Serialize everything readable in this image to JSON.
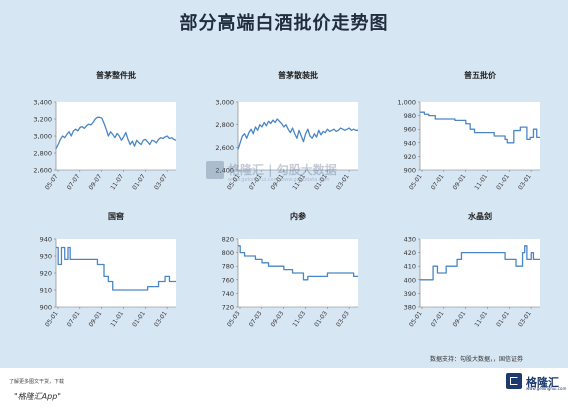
{
  "header": {
    "title": "部分高端白酒批价走势图"
  },
  "colors": {
    "background": "#d7e6f3",
    "line": "#4a86c5",
    "title": "#1f2d3d",
    "plot_bg": "#ffffff"
  },
  "chart_data": [
    {
      "type": "line",
      "title": "普茅整件批",
      "ylim": [
        2600,
        3400
      ],
      "yticks": [
        "2,600",
        "2,800",
        "3,000",
        "3,200",
        "3,400"
      ],
      "xticks": [
        "05-07",
        "07-07",
        "09-07",
        "11-07",
        "01-07",
        "03-07"
      ],
      "x_range": [
        0,
        11
      ],
      "series": [
        {
          "points": [
            [
              0,
              2850
            ],
            [
              0.2,
              2900
            ],
            [
              0.4,
              2960
            ],
            [
              0.6,
              3000
            ],
            [
              0.8,
              2980
            ],
            [
              1,
              3020
            ],
            [
              1.2,
              3050
            ],
            [
              1.4,
              3000
            ],
            [
              1.6,
              3060
            ],
            [
              1.8,
              3080
            ],
            [
              2,
              3060
            ],
            [
              2.2,
              3100
            ],
            [
              2.4,
              3110
            ],
            [
              2.6,
              3090
            ],
            [
              2.8,
              3120
            ],
            [
              3,
              3140
            ],
            [
              3.2,
              3130
            ],
            [
              3.4,
              3160
            ],
            [
              3.6,
              3200
            ],
            [
              3.8,
              3220
            ],
            [
              4,
              3220
            ],
            [
              4.2,
              3210
            ],
            [
              4.4,
              3150
            ],
            [
              4.6,
              3080
            ],
            [
              4.8,
              3000
            ],
            [
              5,
              3050
            ],
            [
              5.2,
              3020
            ],
            [
              5.4,
              2980
            ],
            [
              5.6,
              3030
            ],
            [
              5.8,
              3000
            ],
            [
              6,
              2950
            ],
            [
              6.2,
              2990
            ],
            [
              6.4,
              3040
            ],
            [
              6.6,
              2960
            ],
            [
              6.8,
              2900
            ],
            [
              7,
              2940
            ],
            [
              7.2,
              2880
            ],
            [
              7.4,
              2950
            ],
            [
              7.6,
              2920
            ],
            [
              7.8,
              2900
            ],
            [
              8,
              2950
            ],
            [
              8.2,
              2960
            ],
            [
              8.4,
              2930
            ],
            [
              8.6,
              2900
            ],
            [
              8.8,
              2950
            ],
            [
              9,
              2940
            ],
            [
              9.2,
              2920
            ],
            [
              9.4,
              2960
            ],
            [
              9.6,
              2980
            ],
            [
              9.8,
              2970
            ],
            [
              10,
              2990
            ],
            [
              10.2,
              3000
            ],
            [
              10.4,
              2970
            ],
            [
              10.6,
              2980
            ],
            [
              10.8,
              2960
            ],
            [
              11,
              2950
            ]
          ]
        }
      ]
    },
    {
      "type": "line",
      "title": "普茅散装批",
      "ylim": [
        2400,
        3000
      ],
      "yticks": [
        "2,400",
        "2,600",
        "2,800",
        "3,000"
      ],
      "xticks": [
        "05-01",
        "07-01",
        "09-01",
        "11-01",
        "01-01",
        "03-01"
      ],
      "x_range": [
        0,
        11
      ],
      "series": [
        {
          "points": [
            [
              0,
              2580
            ],
            [
              0.2,
              2640
            ],
            [
              0.4,
              2700
            ],
            [
              0.6,
              2720
            ],
            [
              0.8,
              2680
            ],
            [
              1,
              2730
            ],
            [
              1.2,
              2760
            ],
            [
              1.4,
              2720
            ],
            [
              1.6,
              2780
            ],
            [
              1.8,
              2750
            ],
            [
              2,
              2800
            ],
            [
              2.2,
              2780
            ],
            [
              2.4,
              2820
            ],
            [
              2.6,
              2790
            ],
            [
              2.8,
              2830
            ],
            [
              3,
              2810
            ],
            [
              3.2,
              2840
            ],
            [
              3.4,
              2820
            ],
            [
              3.6,
              2850
            ],
            [
              3.8,
              2830
            ],
            [
              4,
              2810
            ],
            [
              4.2,
              2780
            ],
            [
              4.4,
              2800
            ],
            [
              4.6,
              2760
            ],
            [
              4.8,
              2730
            ],
            [
              5,
              2770
            ],
            [
              5.2,
              2720
            ],
            [
              5.4,
              2680
            ],
            [
              5.6,
              2750
            ],
            [
              5.8,
              2700
            ],
            [
              6,
              2650
            ],
            [
              6.2,
              2720
            ],
            [
              6.4,
              2760
            ],
            [
              6.6,
              2700
            ],
            [
              6.8,
              2680
            ],
            [
              7,
              2720
            ],
            [
              7.2,
              2690
            ],
            [
              7.4,
              2750
            ],
            [
              7.6,
              2710
            ],
            [
              7.8,
              2740
            ],
            [
              8,
              2730
            ],
            [
              8.2,
              2760
            ],
            [
              8.4,
              2740
            ],
            [
              8.6,
              2750
            ],
            [
              8.8,
              2760
            ],
            [
              9,
              2740
            ],
            [
              9.2,
              2750
            ],
            [
              9.4,
              2770
            ],
            [
              9.6,
              2760
            ],
            [
              9.8,
              2750
            ],
            [
              10,
              2760
            ],
            [
              10.2,
              2770
            ],
            [
              10.4,
              2750
            ],
            [
              10.6,
              2760
            ],
            [
              10.8,
              2750
            ],
            [
              11,
              2750
            ]
          ]
        }
      ]
    },
    {
      "type": "line",
      "title": "普五批价",
      "ylim": [
        900,
        1000
      ],
      "yticks": [
        "900",
        "920",
        "940",
        "960",
        "980",
        "1,000"
      ],
      "xticks": [
        "05-01",
        "07-01",
        "09-01",
        "11-01",
        "01-01",
        "03-01"
      ],
      "x_range": [
        0,
        11
      ],
      "series": [
        {
          "points": [
            [
              0,
              985
            ],
            [
              0.4,
              985
            ],
            [
              0.4,
              982
            ],
            [
              0.8,
              982
            ],
            [
              0.8,
              980
            ],
            [
              1.4,
              980
            ],
            [
              1.4,
              975
            ],
            [
              3.2,
              975
            ],
            [
              3.2,
              973
            ],
            [
              4.2,
              973
            ],
            [
              4.2,
              968
            ],
            [
              4.6,
              968
            ],
            [
              4.6,
              960
            ],
            [
              5,
              960
            ],
            [
              5,
              955
            ],
            [
              6.8,
              955
            ],
            [
              6.8,
              950
            ],
            [
              7.8,
              950
            ],
            [
              7.8,
              945
            ],
            [
              8,
              945
            ],
            [
              8,
              940
            ],
            [
              8.6,
              940
            ],
            [
              8.6,
              958
            ],
            [
              9.2,
              958
            ],
            [
              9.2,
              963
            ],
            [
              9.8,
              963
            ],
            [
              9.8,
              945
            ],
            [
              10.1,
              945
            ],
            [
              10.1,
              948
            ],
            [
              10.4,
              948
            ],
            [
              10.4,
              960
            ],
            [
              10.7,
              960
            ],
            [
              10.7,
              948
            ],
            [
              11,
              948
            ]
          ]
        }
      ]
    },
    {
      "type": "line",
      "title": "国窖",
      "ylim": [
        900,
        940
      ],
      "yticks": [
        "900",
        "910",
        "920",
        "930",
        "940"
      ],
      "xticks": [
        "05-01",
        "07-01",
        "09-01",
        "11-01",
        "01-01",
        "03-01"
      ],
      "x_range": [
        0,
        11
      ],
      "series": [
        {
          "points": [
            [
              0,
              935
            ],
            [
              0.2,
              935
            ],
            [
              0.2,
              925
            ],
            [
              0.5,
              925
            ],
            [
              0.5,
              935
            ],
            [
              0.8,
              935
            ],
            [
              0.8,
              928
            ],
            [
              1.1,
              928
            ],
            [
              1.1,
              935
            ],
            [
              1.3,
              935
            ],
            [
              1.3,
              928
            ],
            [
              3.8,
              928
            ],
            [
              3.8,
              925
            ],
            [
              4.4,
              925
            ],
            [
              4.4,
              918
            ],
            [
              4.8,
              918
            ],
            [
              4.8,
              915
            ],
            [
              5.2,
              915
            ],
            [
              5.2,
              910
            ],
            [
              8.4,
              910
            ],
            [
              8.4,
              912
            ],
            [
              9.4,
              912
            ],
            [
              9.4,
              915
            ],
            [
              10,
              915
            ],
            [
              10,
              918
            ],
            [
              10.4,
              918
            ],
            [
              10.4,
              915
            ],
            [
              11,
              915
            ]
          ]
        }
      ]
    },
    {
      "type": "line",
      "title": "内参",
      "ylim": [
        720,
        820
      ],
      "yticks": [
        "720",
        "740",
        "760",
        "780",
        "800",
        "820"
      ],
      "xticks": [
        "05-03",
        "07-03",
        "09-03",
        "11-03",
        "01-03",
        "03-03"
      ],
      "x_range": [
        0,
        11
      ],
      "series": [
        {
          "points": [
            [
              0,
              810
            ],
            [
              0.2,
              810
            ],
            [
              0.2,
              800
            ],
            [
              0.6,
              800
            ],
            [
              0.6,
              795
            ],
            [
              1.6,
              795
            ],
            [
              1.6,
              790
            ],
            [
              2.2,
              790
            ],
            [
              2.2,
              785
            ],
            [
              2.8,
              785
            ],
            [
              2.8,
              780
            ],
            [
              4.2,
              780
            ],
            [
              4.2,
              775
            ],
            [
              5,
              775
            ],
            [
              5,
              770
            ],
            [
              6,
              770
            ],
            [
              6,
              760
            ],
            [
              6.4,
              760
            ],
            [
              6.4,
              765
            ],
            [
              8.2,
              765
            ],
            [
              8.2,
              770
            ],
            [
              10.6,
              770
            ],
            [
              10.6,
              765
            ],
            [
              11,
              765
            ]
          ]
        }
      ]
    },
    {
      "type": "line",
      "title": "水晶剑",
      "ylim": [
        380,
        430
      ],
      "yticks": [
        "380",
        "390",
        "400",
        "410",
        "420",
        "430"
      ],
      "xticks": [
        "05-01",
        "07-01",
        "09-01",
        "11-01",
        "01-01",
        "03-01"
      ],
      "x_range": [
        0,
        11
      ],
      "series": [
        {
          "points": [
            [
              0,
              400
            ],
            [
              1.2,
              400
            ],
            [
              1.2,
              410
            ],
            [
              1.6,
              410
            ],
            [
              1.6,
              405
            ],
            [
              2.4,
              405
            ],
            [
              2.4,
              410
            ],
            [
              3.4,
              410
            ],
            [
              3.4,
              415
            ],
            [
              3.8,
              415
            ],
            [
              3.8,
              420
            ],
            [
              7.8,
              420
            ],
            [
              7.8,
              415
            ],
            [
              8.8,
              415
            ],
            [
              8.8,
              410
            ],
            [
              9.4,
              410
            ],
            [
              9.4,
              420
            ],
            [
              9.6,
              420
            ],
            [
              9.6,
              425
            ],
            [
              9.8,
              425
            ],
            [
              9.8,
              415
            ],
            [
              10.2,
              415
            ],
            [
              10.2,
              420
            ],
            [
              10.4,
              420
            ],
            [
              10.4,
              415
            ],
            [
              11,
              415
            ]
          ]
        }
      ]
    }
  ],
  "footer": {
    "source": "数据支持：勾股大数据，，国信证券",
    "note": "了解更多图文干货，下载",
    "app": "\"格隆汇App\""
  },
  "logo": {
    "text": "格隆汇",
    "sub": "www.gelonghui.com"
  },
  "watermark": {
    "text": "格隆汇 | 勾股大数据",
    "sub": "www.gelonghui.com    www.gogudata.com"
  }
}
